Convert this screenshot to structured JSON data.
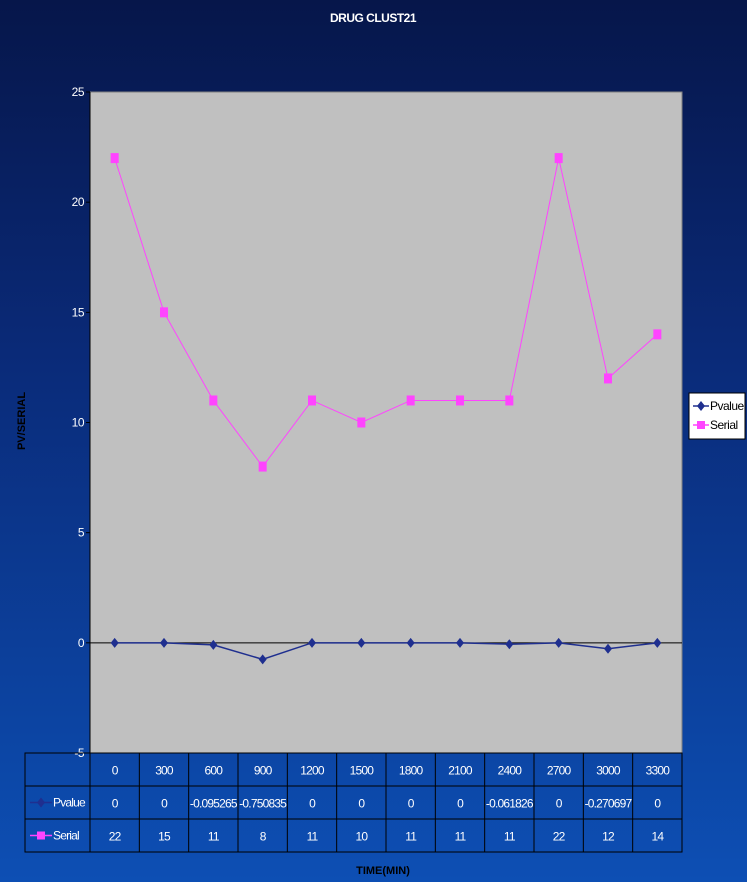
{
  "chart_data": {
    "type": "line",
    "title": "DRUG CLUST21",
    "xlabel": "TIME(MIN)",
    "ylabel": "PV/SERIAL",
    "ylim": [
      -5,
      25
    ],
    "yticks": [
      "25",
      "20",
      "15",
      "10",
      "5",
      "0",
      "-5"
    ],
    "categories": [
      "0",
      "300",
      "600",
      "900",
      "1200",
      "1500",
      "1800",
      "2100",
      "2400",
      "2700",
      "3000",
      "3300"
    ],
    "series": [
      {
        "name": "Pvalue",
        "color": "#1f2f8f",
        "marker": "diamond",
        "values": [
          0,
          0,
          -0.095265,
          -0.750835,
          0,
          0,
          0,
          0,
          -0.061826,
          0,
          -0.270697,
          0
        ],
        "labels": [
          "0",
          "0",
          "-0.095265",
          "-0.750835",
          "0",
          "0",
          "0",
          "0",
          "-0.061826",
          "0",
          "-0.270697",
          "0"
        ]
      },
      {
        "name": "Serial",
        "color": "#ff44ff",
        "marker": "square",
        "values": [
          22,
          15,
          11,
          8,
          11,
          10,
          11,
          11,
          11,
          22,
          12,
          14
        ],
        "labels": [
          "22",
          "15",
          "11",
          "8",
          "11",
          "10",
          "11",
          "11",
          "11",
          "22",
          "12",
          "14"
        ]
      }
    ],
    "grid": false,
    "legend": "right",
    "data_table": true,
    "plot_background": "#c0c0c0"
  }
}
